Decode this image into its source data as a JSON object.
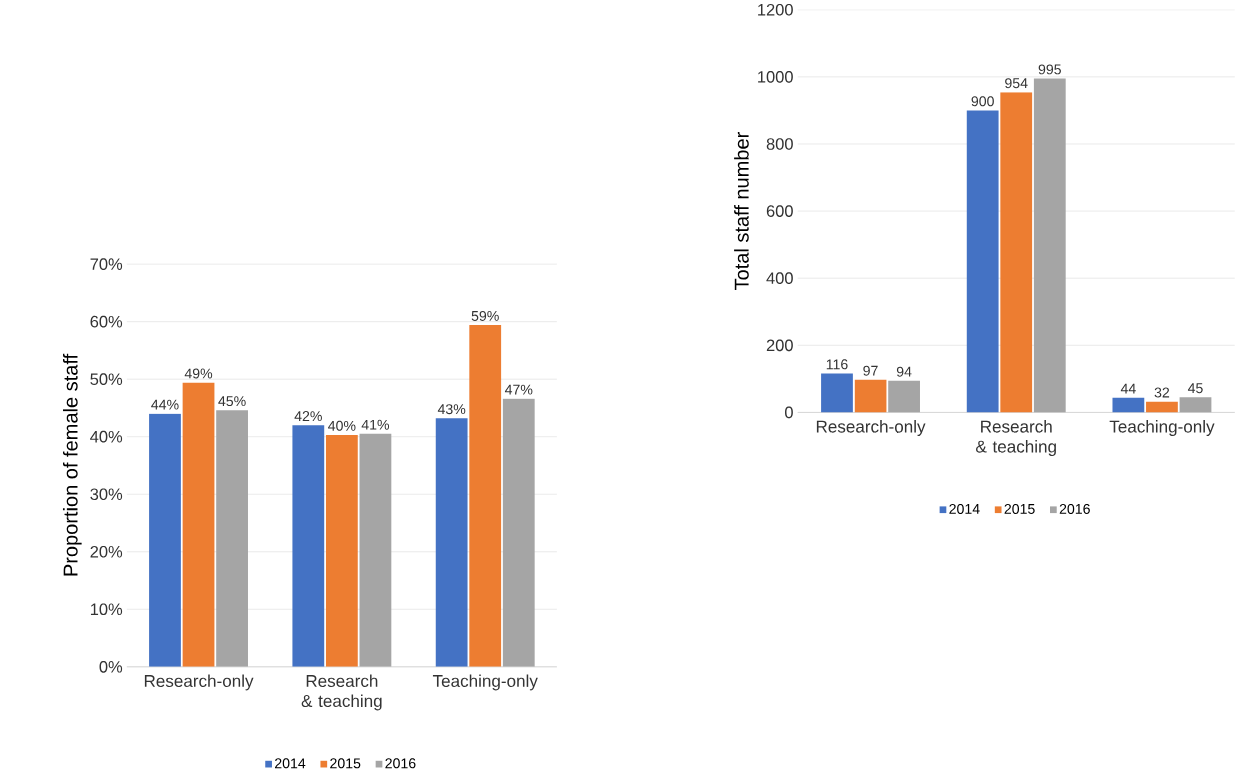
{
  "chart_data": [
    {
      "type": "bar",
      "ylabel": "Proportion of female staff",
      "categories": [
        "Research-only",
        "Research & teaching",
        "Teaching-only"
      ],
      "series": [
        {
          "name": "2014",
          "color": "#4472c4",
          "values": [
            44.0,
            42.0,
            43.2
          ],
          "value_labels": [
            "44%",
            "42%",
            "43%"
          ]
        },
        {
          "name": "2015",
          "color": "#ed7d31",
          "values": [
            49.4,
            40.3,
            59.4
          ],
          "value_labels": [
            "49%",
            "40%",
            "59%"
          ]
        },
        {
          "name": "2016",
          "color": "#a5a5a5",
          "values": [
            44.6,
            40.5,
            46.6
          ],
          "value_labels": [
            "45%",
            "41%",
            "47%"
          ]
        }
      ],
      "ylim": [
        0,
        70
      ],
      "yticks": [
        {
          "value": 0,
          "label": "0%"
        },
        {
          "value": 10,
          "label": "10%"
        },
        {
          "value": 20,
          "label": "20%"
        },
        {
          "value": 30,
          "label": "30%"
        },
        {
          "value": 40,
          "label": "40%"
        },
        {
          "value": 50,
          "label": "50%"
        },
        {
          "value": 60,
          "label": "60%"
        },
        {
          "value": 70,
          "label": "70%"
        }
      ],
      "grid": "y",
      "legend": "bottom"
    },
    {
      "type": "bar",
      "ylabel": "Total staff number",
      "categories": [
        "Research-only",
        "Research & teaching",
        "Teaching-only"
      ],
      "series": [
        {
          "name": "2014",
          "color": "#4472c4",
          "values": [
            116,
            900,
            44
          ]
        },
        {
          "name": "2015",
          "color": "#ed7d31",
          "values": [
            97,
            954,
            32
          ]
        },
        {
          "name": "2016",
          "color": "#a5a5a5",
          "values": [
            94,
            995,
            45
          ]
        }
      ],
      "ylim": [
        0,
        1200
      ],
      "yticks": [
        0,
        200,
        400,
        600,
        800,
        1000,
        1200
      ],
      "grid": "y",
      "legend": "bottom",
      "data_labels": true
    }
  ]
}
